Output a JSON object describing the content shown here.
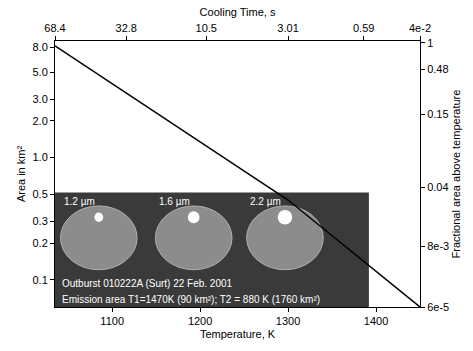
{
  "chart_data": {
    "type": "line",
    "x_label": "Temperature, K",
    "y_label": "Area in km²",
    "log": "y",
    "grid": false,
    "x": [
      1035,
      1300,
      1450
    ],
    "values": [
      8.2,
      0.45,
      0.06
    ],
    "color": "#000000",
    "xlim": [
      1035,
      1450
    ],
    "xticks": [
      1100,
      1200,
      1300,
      1400
    ],
    "ylim": [
      0.06,
      9
    ],
    "yticks": [
      {
        "value": 8,
        "label": "8.0"
      },
      {
        "value": 5,
        "label": "5.0"
      },
      {
        "value": 3,
        "label": "3.0"
      },
      {
        "value": 2,
        "label": "2.0"
      },
      {
        "value": 1,
        "label": "1.0"
      },
      0.5,
      0.3,
      0.2,
      0.1
    ],
    "top_axis": {
      "label": "Cooling Time, s",
      "ticks": [
        68.4,
        32.8,
        10.5,
        3.01,
        0.59,
        {
          "value": 0.04,
          "label": "4e-2"
        }
      ],
      "at_x": [
        1035,
        1116,
        1207,
        1300,
        1386,
        1450
      ]
    },
    "right_axis": {
      "label": "Fractional area above temperature",
      "ticks": [
        1,
        0.48,
        0.15,
        0.04,
        {
          "value": 0.008,
          "label": "8e-3"
        },
        {
          "value": 6e-05,
          "label": "6e-5"
        }
      ],
      "at_y": [
        8.7,
        5.3,
        2.26,
        0.57,
        0.188,
        0.06
      ]
    },
    "inset": {
      "wavelengths": [
        "1.2 µm",
        "1.6 µm",
        "2.2 µm"
      ],
      "caption": [
        "Outburst 010222A (Surt) 22 Feb. 2001",
        "Emission area T1=1470K (90 km²); T2 = 880 K (1760 km²)"
      ]
    }
  }
}
